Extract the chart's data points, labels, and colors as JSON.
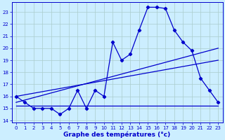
{
  "title": "Graphe des températures (°c)",
  "background_color": "#cceeff",
  "grid_color": "#aacccc",
  "line_color": "#0000cc",
  "xlim": [
    -0.5,
    23.5
  ],
  "ylim": [
    13.8,
    23.8
  ],
  "yticks": [
    14,
    15,
    16,
    17,
    18,
    19,
    20,
    21,
    22,
    23
  ],
  "xticks": [
    0,
    1,
    2,
    3,
    4,
    5,
    6,
    7,
    8,
    9,
    10,
    11,
    12,
    13,
    14,
    15,
    16,
    17,
    18,
    19,
    20,
    21,
    22,
    23
  ],
  "series1_x": [
    0,
    1,
    2,
    3,
    4,
    5,
    6,
    7,
    8,
    9,
    10,
    11,
    12,
    13,
    14,
    15,
    16,
    17,
    18,
    19,
    20,
    21,
    22,
    23
  ],
  "series1_y": [
    16.0,
    15.5,
    15.0,
    15.0,
    15.0,
    14.5,
    15.0,
    16.5,
    15.0,
    16.5,
    16.0,
    20.5,
    19.0,
    19.5,
    21.5,
    23.4,
    23.4,
    23.3,
    21.5,
    20.5,
    19.8,
    17.5,
    16.5,
    15.5
  ],
  "series2_x": [
    0,
    10,
    20,
    23
  ],
  "series2_y": [
    15.2,
    15.2,
    15.2,
    15.2
  ],
  "series3_x": [
    0,
    23
  ],
  "series3_y": [
    15.5,
    20.0
  ],
  "series4_x": [
    0,
    23
  ],
  "series4_y": [
    16.0,
    19.0
  ]
}
